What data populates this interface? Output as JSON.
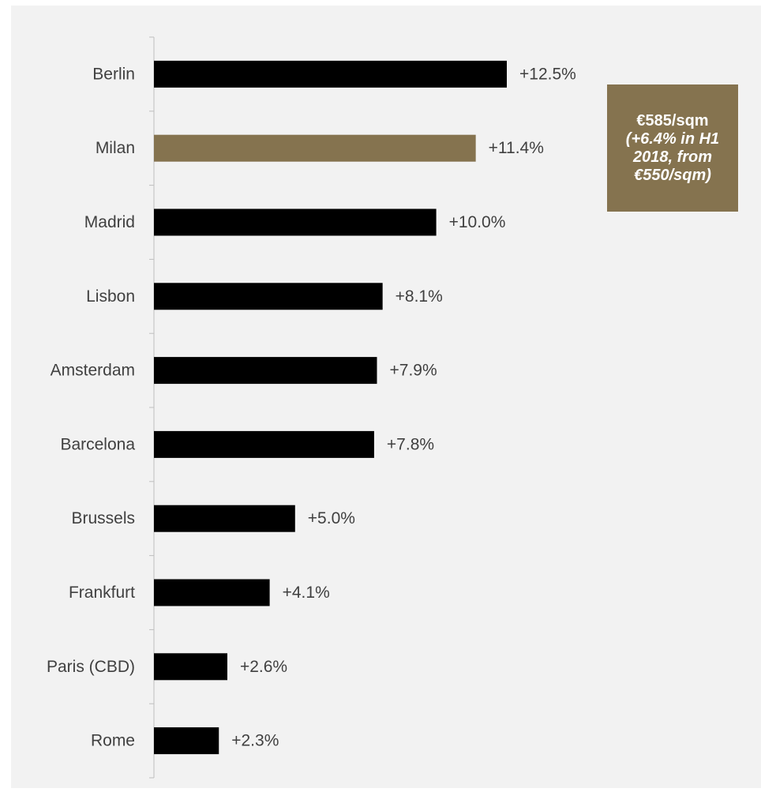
{
  "chart_data": {
    "type": "bar",
    "orientation": "horizontal",
    "categories": [
      "Berlin",
      "Milan",
      "Madrid",
      "Lisbon",
      "Amsterdam",
      "Barcelona",
      "Brussels",
      "Frankfurt",
      "Paris (CBD)",
      "Rome"
    ],
    "values": [
      12.5,
      11.4,
      10.0,
      8.1,
      7.9,
      7.8,
      5.0,
      4.1,
      2.6,
      2.3
    ],
    "data_labels": [
      "+12.5%",
      "+11.4%",
      "+10.0%",
      "+8.1%",
      "+7.9%",
      "+7.8%",
      "+5.0%",
      "+4.1%",
      "+2.6%",
      "+2.3%"
    ],
    "highlight_index": 1,
    "xlim": [
      0,
      13
    ],
    "grid": false,
    "legend": "none",
    "colors": {
      "bar": "#000000",
      "highlight": "#85734f",
      "background": "#f2f2f2",
      "axis": "#bfbfbf",
      "label": "#404040"
    }
  },
  "callout": {
    "line1": "€585/sqm",
    "line2": "(+6.4% in H1",
    "line3": "2018, from",
    "line4": "€550/sqm)"
  }
}
